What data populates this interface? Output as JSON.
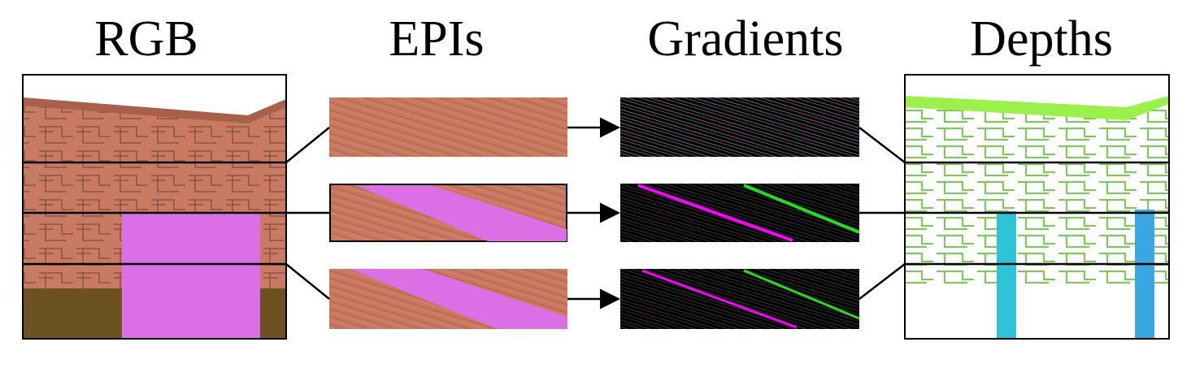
{
  "headers": [
    "RGB",
    "EPIs",
    "Gradients",
    "Depths"
  ]
}
